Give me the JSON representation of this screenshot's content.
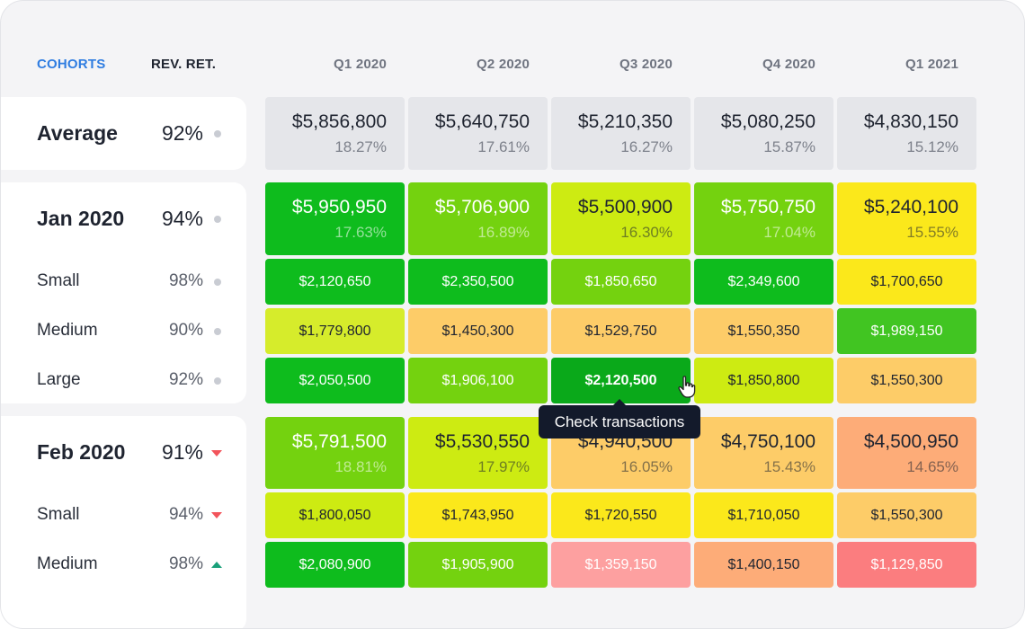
{
  "header": {
    "cohorts_label": "COHORTS",
    "retention_label": "REV. RET.",
    "quarters": [
      "Q1 2020",
      "Q2 2020",
      "Q3 2020",
      "Q4 2020",
      "Q1 2021"
    ]
  },
  "indicator_colors": {
    "neutral": "#c9ccd3",
    "down": "#f2545b",
    "up": "#1aa07a"
  },
  "rows": [
    {
      "name": "Average",
      "retention": "92%",
      "indicator": "dot",
      "kind": "average",
      "cells": [
        {
          "amount": "$5,856,800",
          "percent": "18.27%",
          "color": "#e5e6ea"
        },
        {
          "amount": "$5,640,750",
          "percent": "17.61%",
          "color": "#e5e6ea"
        },
        {
          "amount": "$5,210,350",
          "percent": "16.27%",
          "color": "#e5e6ea"
        },
        {
          "amount": "$5,080,250",
          "percent": "15.87%",
          "color": "#e5e6ea"
        },
        {
          "amount": "$4,830,150",
          "percent": "15.12%",
          "color": "#e5e6ea"
        }
      ]
    },
    {
      "name": "Jan 2020",
      "retention": "94%",
      "indicator": "dot",
      "kind": "main",
      "cells": [
        {
          "amount": "$5,950,950",
          "percent": "17.63%",
          "color": "#0ebc1d",
          "text": "light"
        },
        {
          "amount": "$5,706,900",
          "percent": "16.89%",
          "color": "#74d20f",
          "text": "light"
        },
        {
          "amount": "$5,500,900",
          "percent": "16.30%",
          "color": "#cdeb12",
          "text": "dark"
        },
        {
          "amount": "$5,750,750",
          "percent": "17.04%",
          "color": "#74d20f",
          "text": "light"
        },
        {
          "amount": "$5,240,100",
          "percent": "15.55%",
          "color": "#fbe81b",
          "text": "dark"
        }
      ]
    },
    {
      "name": "Small",
      "retention": "98%",
      "indicator": "dot",
      "kind": "sub",
      "cells": [
        {
          "amount": "$2,120,650",
          "color": "#0ebc1d",
          "text": "light"
        },
        {
          "amount": "$2,350,500",
          "color": "#0ebc1d",
          "text": "light"
        },
        {
          "amount": "$1,850,650",
          "color": "#74d20f",
          "text": "light"
        },
        {
          "amount": "$2,349,600",
          "color": "#0ebc1d",
          "text": "light"
        },
        {
          "amount": "$1,700,650",
          "color": "#fbe81b",
          "text": "dark"
        }
      ]
    },
    {
      "name": "Medium",
      "retention": "90%",
      "indicator": "dot",
      "kind": "sub",
      "cells": [
        {
          "amount": "$1,779,800",
          "color": "#d6ec2b",
          "text": "dark"
        },
        {
          "amount": "$1,450,300",
          "color": "#fdcc68",
          "text": "dark"
        },
        {
          "amount": "$1,529,750",
          "color": "#fdcc68",
          "text": "dark"
        },
        {
          "amount": "$1,550,350",
          "color": "#fdcc68",
          "text": "dark"
        },
        {
          "amount": "$1,989,150",
          "color": "#41c522",
          "text": "light"
        }
      ]
    },
    {
      "name": "Large",
      "retention": "92%",
      "indicator": "dot",
      "kind": "sub",
      "cells": [
        {
          "amount": "$2,050,500",
          "color": "#0ebc1d",
          "text": "light"
        },
        {
          "amount": "$1,906,100",
          "color": "#74d20f",
          "text": "light"
        },
        {
          "amount": "$2,120,500",
          "color": "#0aa91a",
          "text": "light",
          "hover": true
        },
        {
          "amount": "$1,850,800",
          "color": "#cdeb12",
          "text": "dark"
        },
        {
          "amount": "$1,550,300",
          "color": "#fdcc68",
          "text": "dark"
        }
      ]
    },
    {
      "name": "Feb 2020",
      "retention": "91%",
      "indicator": "down",
      "kind": "main",
      "cells": [
        {
          "amount": "$5,791,500",
          "percent": "18.81%",
          "color": "#74d20f",
          "text": "light"
        },
        {
          "amount": "$5,530,550",
          "percent": "17.97%",
          "color": "#cdeb12",
          "text": "dark"
        },
        {
          "amount": "$4,940,500",
          "percent": "16.05%",
          "color": "#fdcc68",
          "text": "dark"
        },
        {
          "amount": "$4,750,100",
          "percent": "15.43%",
          "color": "#fdcc68",
          "text": "dark"
        },
        {
          "amount": "$4,500,950",
          "percent": "14.65%",
          "color": "#fdac78",
          "text": "dark"
        }
      ]
    },
    {
      "name": "Small",
      "retention": "94%",
      "indicator": "down",
      "kind": "sub",
      "cells": [
        {
          "amount": "$1,800,050",
          "color": "#cdeb12",
          "text": "dark"
        },
        {
          "amount": "$1,743,950",
          "color": "#fbe81b",
          "text": "dark"
        },
        {
          "amount": "$1,720,550",
          "color": "#fbe81b",
          "text": "dark"
        },
        {
          "amount": "$1,710,050",
          "color": "#fbe81b",
          "text": "dark"
        },
        {
          "amount": "$1,550,300",
          "color": "#fdcc68",
          "text": "dark"
        }
      ]
    },
    {
      "name": "Medium",
      "retention": "98%",
      "indicator": "up",
      "kind": "sub",
      "cells": [
        {
          "amount": "$2,080,900",
          "color": "#0ebc1d",
          "text": "light"
        },
        {
          "amount": "$1,905,900",
          "color": "#74d20f",
          "text": "light"
        },
        {
          "amount": "$1,359,150",
          "color": "#fda0a0",
          "text": "light"
        },
        {
          "amount": "$1,400,150",
          "color": "#fdac78",
          "text": "dark"
        },
        {
          "amount": "$1,129,850",
          "color": "#fb7d7f",
          "text": "light"
        }
      ]
    }
  ],
  "tooltip": {
    "text": "Check transactions"
  }
}
